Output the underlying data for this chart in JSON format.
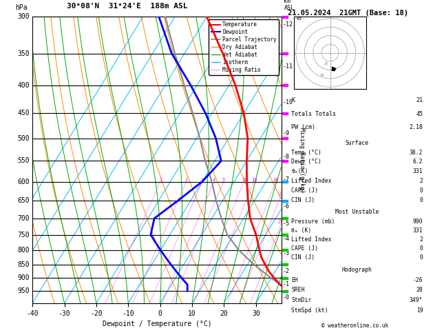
{
  "title_left": "30°08'N  31°24'E  188m ASL",
  "title_right": "21.05.2024  21GMT (Base: 18)",
  "xlabel": "Dewpoint / Temperature (°C)",
  "p_levels": [
    300,
    350,
    400,
    450,
    500,
    550,
    600,
    650,
    700,
    750,
    800,
    850,
    900,
    950
  ],
  "p_min": 300,
  "p_max": 1000,
  "T_min": -40,
  "T_max": 38,
  "skew_factor": 0.7,
  "temp_profile": {
    "pressure": [
      950,
      925,
      900,
      875,
      850,
      825,
      800,
      775,
      750,
      700,
      650,
      600,
      550,
      500,
      450,
      400,
      350,
      300
    ],
    "temp": [
      38.2,
      34.0,
      31.0,
      28.0,
      25.5,
      23.0,
      21.0,
      19.0,
      17.0,
      12.0,
      8.0,
      4.0,
      0.0,
      -4.0,
      -10.0,
      -18.0,
      -28.0,
      -40.0
    ]
  },
  "dewp_profile": {
    "pressure": [
      950,
      925,
      900,
      875,
      850,
      825,
      800,
      775,
      750,
      700,
      650,
      600,
      550,
      500,
      450,
      400,
      350,
      300
    ],
    "temp": [
      6.2,
      5.0,
      2.0,
      -1.0,
      -4.0,
      -7.0,
      -10.0,
      -13.0,
      -16.0,
      -18.0,
      -14.0,
      -10.0,
      -8.0,
      -14.0,
      -22.0,
      -32.0,
      -44.0,
      -55.0
    ]
  },
  "parcel_profile": {
    "pressure": [
      950,
      900,
      850,
      800,
      750,
      700,
      650,
      600,
      550,
      500,
      450,
      400,
      350,
      300
    ],
    "temp": [
      38.2,
      30.0,
      22.0,
      14.5,
      8.0,
      3.0,
      -2.0,
      -7.0,
      -13.0,
      -19.0,
      -26.0,
      -34.0,
      -43.0,
      -53.0
    ]
  },
  "temperature_color": "#ff0000",
  "dewpoint_color": "#0000ff",
  "parcel_color": "#888888",
  "dry_adiabat_color": "#ff8800",
  "wet_adiabat_color": "#00aa00",
  "isotherm_color": "#00bbff",
  "mixing_ratio_color": "#ff00ff",
  "background_color": "#ffffff",
  "km_ticks": {
    "pressure": [
      975,
      925,
      875,
      812,
      762,
      715,
      665,
      595,
      540,
      490,
      430,
      370,
      310
    ],
    "km": [
      0,
      1,
      2,
      3,
      4,
      5,
      6,
      7,
      8,
      9,
      10,
      11,
      12
    ]
  },
  "right_panel": {
    "K": 21,
    "TT": 45,
    "PW": "2.18",
    "surface_temp": "38.2",
    "surface_dewp": "6.2",
    "surface_theta_e": 331,
    "surface_LI": 2,
    "surface_CAPE": 0,
    "surface_CIN": 0,
    "mu_pressure": 990,
    "mu_theta_e": 331,
    "mu_LI": 2,
    "mu_CAPE": 0,
    "mu_CIN": 0,
    "EH": -26,
    "SREH": 28,
    "StmDir": "349°",
    "StmSpd": 19
  },
  "wind_barb_pressures": [
    950,
    900,
    850,
    800,
    750,
    700,
    650,
    600,
    550,
    500,
    450,
    400,
    350,
    300
  ],
  "wind_barb_colors": [
    "#00cc00",
    "#00cc00",
    "#00cc00",
    "#00cc00",
    "#00cc00",
    "#00cc00",
    "#00aaff",
    "#00aaff",
    "#ff00ff",
    "#ff00ff",
    "#ff00ff",
    "#ff00ff",
    "#ff00ff",
    "#ff00ff"
  ]
}
